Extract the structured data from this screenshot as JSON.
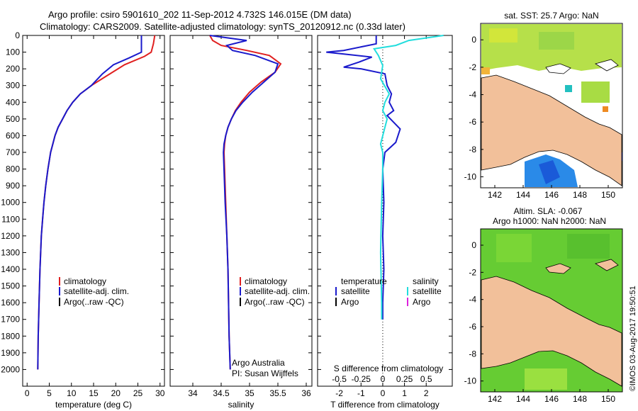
{
  "header": {
    "line1": "Argo profile: csiro 5901610_202 11-Sep-2012 4.732S 146.015E (DM data)",
    "line2": "Climatology: CARS2009. Satellite-adjusted climatology: synTS_20120912.nc (0.33d later)"
  },
  "colors": {
    "climatology": "#e02020",
    "satellite": "#1a1acc",
    "argo": "#000000",
    "cyan": "#22dddd",
    "magenta": "#dd22dd",
    "land": "#f2c09a"
  },
  "chart_data": [
    {
      "type": "line",
      "id": "temperature",
      "xlabel": "temperature (deg C)",
      "ylabel": "",
      "xlim": [
        -1,
        31
      ],
      "ylim": [
        2100,
        0
      ],
      "xticks": [
        "0",
        "5",
        "10",
        "15",
        "20",
        "25",
        "30"
      ],
      "xtick_values": [
        0,
        5,
        10,
        15,
        20,
        25,
        30
      ],
      "yticks": [
        "0",
        "100",
        "200",
        "300",
        "400",
        "500",
        "600",
        "700",
        "800",
        "900",
        "1000",
        "1100",
        "1200",
        "1300",
        "1400",
        "1500",
        "1600",
        "1700",
        "1800",
        "1900",
        "2000"
      ],
      "ytick_values": [
        0,
        100,
        200,
        300,
        400,
        500,
        600,
        700,
        800,
        900,
        1000,
        1100,
        1200,
        1300,
        1400,
        1500,
        1600,
        1700,
        1800,
        1900,
        2000
      ],
      "legend": [
        "climatology",
        "satellite-adj. clim.",
        "Argo(..raw -QC)"
      ],
      "series": [
        {
          "name": "climatology",
          "x": [
            28.8,
            28.5,
            28.0,
            26.5,
            22.0,
            17.5,
            14.5,
            12.0,
            10.3,
            9.0,
            8.0,
            7.0,
            6.3,
            5.8,
            5.3,
            4.7,
            4.2,
            3.8,
            3.5,
            3.2,
            2.9,
            2.7,
            2.5,
            2.4
          ],
          "y": [
            0,
            50,
            100,
            125,
            175,
            250,
            300,
            350,
            400,
            450,
            500,
            550,
            600,
            650,
            700,
            800,
            900,
            1000,
            1100,
            1200,
            1400,
            1600,
            1800,
            2000
          ]
        },
        {
          "name": "satellite-adj. clim.",
          "x": [
            25.8,
            25.8,
            25.8,
            23.0,
            19.5,
            17.0,
            14.5,
            12.0,
            10.3,
            9.0,
            8.0,
            7.0,
            6.3,
            5.8,
            5.3,
            4.7,
            4.2,
            3.8,
            3.5,
            3.2,
            2.9,
            2.7,
            2.5,
            2.4
          ],
          "y": [
            0,
            50,
            100,
            135,
            175,
            230,
            300,
            350,
            400,
            450,
            500,
            550,
            600,
            650,
            700,
            800,
            900,
            1000,
            1100,
            1200,
            1400,
            1600,
            1800,
            2000
          ]
        }
      ]
    },
    {
      "type": "line",
      "id": "salinity",
      "xlabel": "salinity",
      "xlim": [
        33.6,
        36.1
      ],
      "ylim": [
        2100,
        0
      ],
      "xticks": [
        "34",
        "34.5",
        "35",
        "35.5",
        "36"
      ],
      "xtick_values": [
        34,
        34.5,
        35,
        35.5,
        36
      ],
      "legend": [
        "climatology",
        "satellite-adj. clim.",
        "Argo(..raw -QC)"
      ],
      "annotation": [
        "Argo Australia",
        "PI: Susan Wijffels"
      ],
      "series": [
        {
          "name": "climatology",
          "x": [
            34.3,
            34.35,
            34.5,
            34.95,
            35.35,
            35.55,
            35.45,
            35.2,
            35.0,
            34.85,
            34.75,
            34.68,
            34.62,
            34.58,
            34.56,
            34.55,
            34.56,
            34.58,
            34.6,
            34.62,
            34.63,
            34.64,
            34.65,
            34.66
          ],
          "y": [
            0,
            30,
            60,
            90,
            120,
            170,
            220,
            280,
            340,
            400,
            450,
            500,
            550,
            600,
            650,
            700,
            800,
            1000,
            1200,
            1400,
            1600,
            1800,
            1900,
            2000
          ]
        },
        {
          "name": "satellite-adj. clim.",
          "x": [
            34.3,
            34.95,
            34.6,
            34.7,
            35.1,
            35.5,
            35.45,
            35.25,
            35.05,
            34.88,
            34.76,
            34.68,
            34.62,
            34.58,
            34.55,
            34.54,
            34.55,
            34.57,
            34.6,
            34.62,
            34.63,
            34.64,
            34.65,
            34.66
          ],
          "y": [
            0,
            30,
            60,
            90,
            120,
            170,
            220,
            280,
            340,
            400,
            450,
            500,
            550,
            600,
            650,
            700,
            800,
            1000,
            1200,
            1400,
            1600,
            1800,
            1900,
            2000
          ]
        }
      ]
    },
    {
      "type": "line",
      "id": "difference",
      "xlabel": "T difference from climatology",
      "top_label": "S difference from climatology",
      "xlim": [
        -3,
        3.2
      ],
      "ylim": [
        2100,
        0
      ],
      "xticks": [
        "-2",
        "-1",
        "0",
        "1",
        "2"
      ],
      "xtick_values": [
        -2,
        -1,
        0,
        1,
        2
      ],
      "sticks": [
        "-0.5",
        "-0.25",
        "0",
        "0.25",
        "0.5"
      ],
      "stick_values": [
        -2,
        -1,
        0,
        1,
        2
      ],
      "legend_temperature": [
        "temperature",
        "satellite",
        "Argo"
      ],
      "legend_salinity": [
        "salinity",
        "satellite",
        "Argo"
      ],
      "series": [
        {
          "name": "temperature satellite",
          "x": [
            -0.3,
            -0.3,
            -1.8,
            -2.6,
            -1.9,
            -0.5,
            -1.1,
            -1.8,
            -1.0,
            0.1,
            0.2,
            0.4,
            0.3,
            0.5,
            0.2,
            0.5,
            0.8,
            0.6,
            0.1,
            0.0,
            0.05,
            0.0,
            0.05,
            0.0,
            0.0
          ],
          "y": [
            0,
            50,
            90,
            100,
            110,
            130,
            160,
            190,
            200,
            230,
            300,
            350,
            400,
            450,
            480,
            520,
            560,
            640,
            700,
            800,
            1000,
            1200,
            1400,
            1600,
            1700
          ]
        },
        {
          "name": "salinity satellite",
          "x": [
            2.8,
            1.2,
            0.6,
            -0.4,
            -0.2,
            0.0,
            -0.1,
            0.3,
            0.1,
            0.0,
            0.2,
            0.1,
            -0.1,
            0.0,
            0.0,
            -0.05,
            -0.1,
            -0.05,
            -0.05
          ],
          "y": [
            0,
            30,
            60,
            80,
            120,
            180,
            260,
            350,
            400,
            450,
            500,
            550,
            650,
            700,
            800,
            1000,
            1300,
            1600,
            1700
          ]
        }
      ]
    }
  ],
  "maps": [
    {
      "title": "sat. SST: 25.7 Argo: NaN",
      "xticks": [
        "142",
        "144",
        "146",
        "148",
        "150"
      ],
      "yticks": [
        "0",
        "-2",
        "-4",
        "-6",
        "-8",
        "-10"
      ],
      "xlim": [
        141,
        151
      ],
      "ylim": [
        -10.8,
        1.2
      ]
    },
    {
      "title1": "Altim. SLA: -0.067",
      "title2": "Argo h1000: NaN h2000: NaN",
      "xticks": [
        "142",
        "144",
        "146",
        "148",
        "150"
      ],
      "yticks": [
        "0",
        "-2",
        "-4",
        "-6",
        "-8",
        "-10"
      ],
      "xlim": [
        141,
        151
      ],
      "ylim": [
        -10.8,
        1.2
      ]
    }
  ],
  "footer": {
    "credit": "©IMOS 03-Aug-2017 19:50:51"
  }
}
